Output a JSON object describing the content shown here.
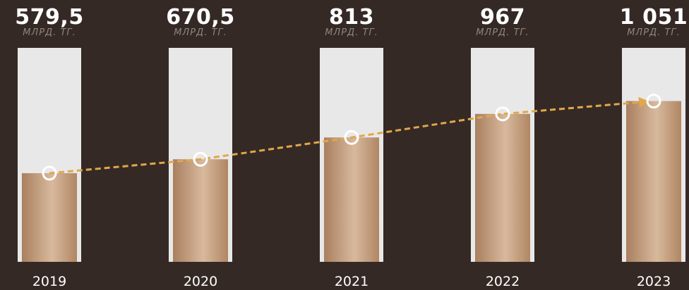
{
  "chart_data": {
    "type": "bar",
    "categories": [
      "2019",
      "2020",
      "2021",
      "2022",
      "2023"
    ],
    "values": [
      579.5,
      670.5,
      813,
      967,
      1051
    ],
    "value_labels": [
      "579,5",
      "670,5",
      "813",
      "967",
      "1 051"
    ],
    "unit": "МЛРД. ТГ.",
    "ylim": [
      0,
      1200
    ],
    "trend_line": true,
    "grid": false,
    "legend": "none"
  },
  "colors": {
    "background": "#352925",
    "bar_track": "#e8e8e8",
    "bar_fill_dark": "#b08663",
    "bar_fill_light": "#d7b79a",
    "trend_line": "#e0a84a",
    "marker": "#ffffff"
  }
}
